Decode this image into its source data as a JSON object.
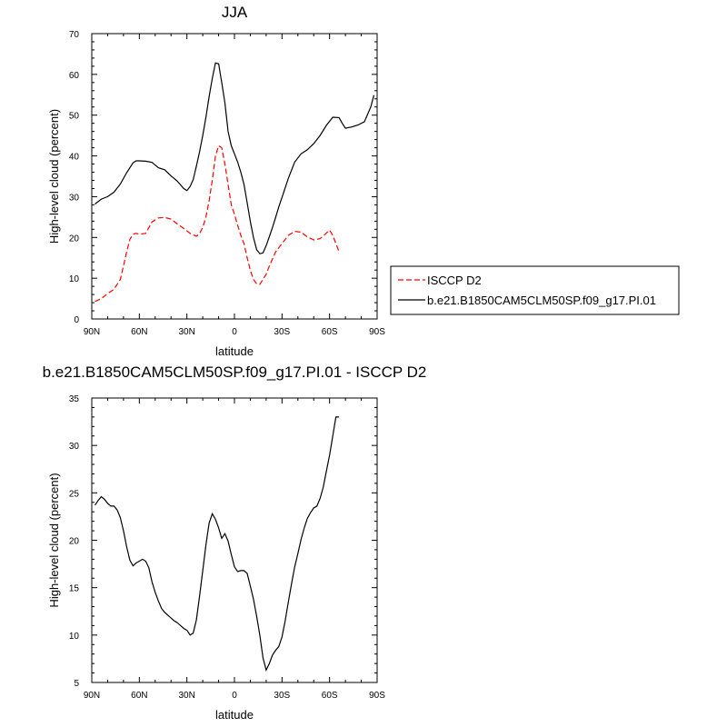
{
  "chart_data": [
    {
      "type": "line",
      "title": "JJA",
      "xlabel": "latitude",
      "ylabel": "High-level cloud (percent)",
      "xlim": [
        -90,
        90
      ],
      "ylim": [
        0,
        70
      ],
      "xticks": [
        {
          "value": -90,
          "label": "90N"
        },
        {
          "value": -60,
          "label": "60N"
        },
        {
          "value": -30,
          "label": "30N"
        },
        {
          "value": 0,
          "label": "0"
        },
        {
          "value": 30,
          "label": "30S"
        },
        {
          "value": 60,
          "label": "60S"
        },
        {
          "value": 90,
          "label": "90S"
        }
      ],
      "yticks": [
        0,
        10,
        20,
        30,
        40,
        50,
        60,
        70
      ],
      "legend": {
        "placement": "right"
      },
      "series": [
        {
          "name": "ISCCP D2",
          "color": "#ff0000",
          "dash": "dashed",
          "x": [
            -88,
            -84,
            -80,
            -76,
            -72,
            -70,
            -68,
            -66,
            -64,
            -62,
            -60,
            -56,
            -52,
            -48,
            -44,
            -40,
            -36,
            -32,
            -28,
            -24,
            -22,
            -20,
            -18,
            -16,
            -14,
            -12,
            -10,
            -8,
            -6,
            -4,
            -2,
            0,
            2,
            4,
            6,
            8,
            10,
            12,
            14,
            16,
            18,
            20,
            22,
            26,
            30,
            34,
            38,
            42,
            46,
            50,
            54,
            56,
            58,
            60,
            62,
            64,
            66
          ],
          "y": [
            4.3,
            5,
            6.2,
            7.3,
            9.7,
            13,
            16.5,
            19.5,
            20.8,
            21,
            20.8,
            21,
            23.8,
            24.8,
            24.9,
            24.5,
            23.3,
            22.2,
            21,
            20.3,
            20.9,
            22.5,
            25,
            29,
            34,
            40,
            42.5,
            42,
            38,
            33,
            28,
            25.7,
            23,
            20.5,
            18.5,
            15,
            12,
            9.7,
            8.6,
            8.5,
            9.7,
            11,
            13,
            16.5,
            18.5,
            20.5,
            21.5,
            21.3,
            20.1,
            19.4,
            19.7,
            20.3,
            21.1,
            21.8,
            20.5,
            18.5,
            16.5
          ]
        },
        {
          "name": "b.e21.B1850CAM5CLM50SP.f09_g17.PI.01",
          "color": "#000000",
          "dash": "solid",
          "x": [
            -88,
            -84,
            -80,
            -76,
            -72,
            -68,
            -64,
            -62,
            -60,
            -56,
            -52,
            -48,
            -44,
            -40,
            -36,
            -32,
            -30,
            -28,
            -26,
            -24,
            -22,
            -20,
            -18,
            -16,
            -14,
            -12,
            -10,
            -8,
            -6,
            -4,
            -2,
            0,
            2,
            4,
            6,
            8,
            10,
            12,
            14,
            16,
            18,
            20,
            22,
            24,
            26,
            28,
            30,
            34,
            38,
            42,
            46,
            50,
            54,
            58,
            62,
            66,
            68,
            70,
            74,
            78,
            82,
            86,
            88
          ],
          "y": [
            28.2,
            29.4,
            30,
            31.1,
            33.1,
            35.9,
            38.3,
            38.8,
            38.8,
            38.7,
            38.4,
            37.1,
            36.6,
            35.1,
            33.8,
            32,
            31.5,
            32.5,
            34.2,
            37.5,
            41,
            45,
            49.5,
            54.5,
            59,
            62.8,
            62.6,
            58,
            53,
            46,
            42.5,
            40.5,
            38.5,
            36,
            33,
            28.5,
            24,
            20,
            17,
            16,
            16.2,
            18,
            20.2,
            22.5,
            25,
            27.5,
            29.8,
            34.5,
            38.5,
            40.5,
            41.5,
            43,
            45,
            47.5,
            49.5,
            49.4,
            48,
            46.8,
            47.1,
            47.6,
            48.4,
            52,
            54.9
          ]
        }
      ]
    },
    {
      "type": "line",
      "title": "b.e21.B1850CAM5CLM50SP.f09_g17.PI.01 - ISCCP D2",
      "xlabel": "latitude",
      "ylabel": "High-level cloud (percent)",
      "xlim": [
        -90,
        90
      ],
      "ylim": [
        5,
        35
      ],
      "xticks": [
        {
          "value": -90,
          "label": "90N"
        },
        {
          "value": -60,
          "label": "60N"
        },
        {
          "value": -30,
          "label": "30N"
        },
        {
          "value": 0,
          "label": "0"
        },
        {
          "value": 30,
          "label": "30S"
        },
        {
          "value": 60,
          "label": "60S"
        },
        {
          "value": 90,
          "label": "90S"
        }
      ],
      "yticks": [
        5,
        10,
        15,
        20,
        25,
        30,
        35
      ],
      "series": [
        {
          "color": "#000000",
          "dash": "solid",
          "x": [
            -88,
            -86,
            -84,
            -82,
            -80,
            -78,
            -76,
            -74,
            -72,
            -70,
            -68,
            -66,
            -64,
            -62,
            -60,
            -58,
            -56,
            -54,
            -52,
            -50,
            -48,
            -46,
            -44,
            -42,
            -40,
            -38,
            -36,
            -34,
            -32,
            -30,
            -28,
            -26,
            -24,
            -22,
            -20,
            -18,
            -16,
            -14,
            -12,
            -10,
            -8,
            -6,
            -4,
            -2,
            0,
            2,
            4,
            6,
            8,
            10,
            12,
            14,
            16,
            18,
            20,
            22,
            24,
            26,
            28,
            30,
            32,
            34,
            36,
            38,
            40,
            42,
            44,
            46,
            48,
            50,
            52,
            54,
            56,
            58,
            60,
            62,
            64,
            66
          ],
          "y": [
            23.7,
            24.2,
            24.6,
            24.3,
            23.9,
            23.6,
            23.6,
            23.2,
            22.4,
            21,
            19.3,
            17.9,
            17.3,
            17.6,
            17.8,
            18,
            17.8,
            17.1,
            15.6,
            14.5,
            13.6,
            12.8,
            12.4,
            12.1,
            11.8,
            11.5,
            11.3,
            11,
            10.7,
            10.5,
            10,
            10.2,
            11.6,
            14.1,
            16.8,
            19.5,
            21.8,
            22.8,
            22.2,
            21.3,
            20.2,
            20.7,
            19.9,
            18.5,
            17.2,
            16.7,
            16.8,
            16.8,
            16.5,
            15.2,
            13.8,
            12,
            10,
            7.6,
            6.3,
            7,
            7.9,
            8.4,
            8.8,
            9.8,
            11.5,
            13.5,
            15.4,
            17.2,
            18.6,
            20.1,
            21.3,
            22.3,
            22.9,
            23.4,
            23.6,
            24.4,
            25.6,
            27.3,
            29,
            31,
            33,
            33
          ]
        }
      ]
    }
  ]
}
